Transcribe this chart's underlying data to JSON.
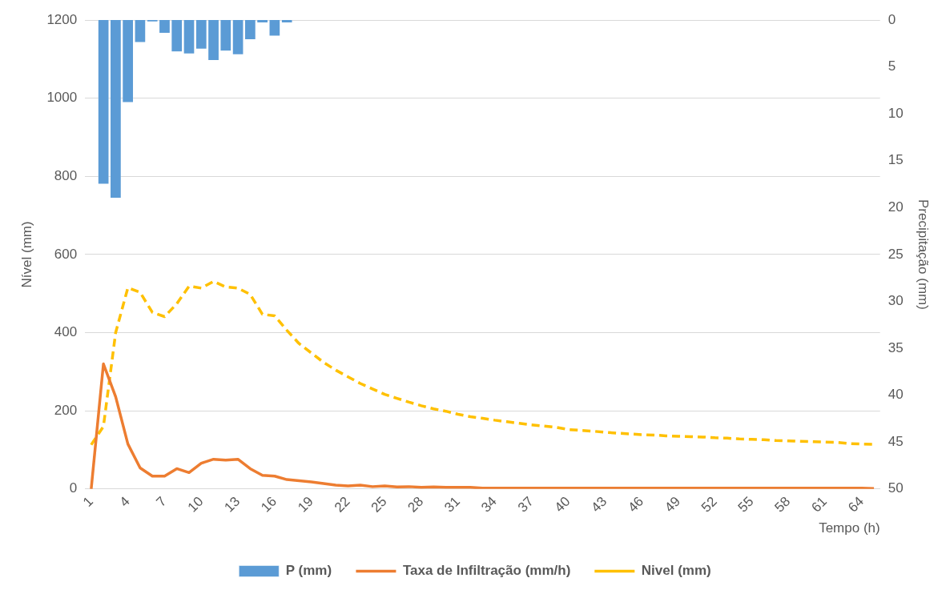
{
  "chart_data": {
    "type": "bar",
    "xlabel": "Tempo (h)",
    "ylabel": "Nível (mm)",
    "y2label": "Precipitação (mm)",
    "categories": [
      "1",
      null,
      null,
      "4",
      null,
      null,
      "7",
      null,
      null,
      "10",
      null,
      null,
      "13",
      null,
      null,
      "16",
      null,
      null,
      "19",
      null,
      null,
      "22",
      null,
      null,
      "25",
      null,
      null,
      "28",
      null,
      null,
      "31",
      null,
      null,
      "34",
      null,
      null,
      "37",
      null,
      null,
      "40",
      null,
      null,
      "43",
      null,
      null,
      "46",
      null,
      null,
      "49",
      null,
      null,
      "52",
      null,
      null,
      "55",
      null,
      null,
      "58",
      null,
      null,
      "61",
      null,
      null,
      "64",
      null
    ],
    "series": [
      {
        "name": "P (mm)",
        "type": "bar",
        "axis": "y2",
        "color": "#5b9bd5",
        "values": [
          0,
          17.5,
          19.0,
          8.8,
          2.4,
          0.2,
          1.4,
          3.4,
          3.6,
          3.1,
          4.3,
          3.3,
          3.7,
          2.1,
          0.3,
          1.7,
          0.3,
          0,
          0,
          0,
          0,
          0,
          0,
          0,
          0,
          0,
          0,
          0,
          0,
          0,
          0,
          0,
          0,
          0,
          0,
          0,
          0,
          0,
          0,
          0,
          0,
          0,
          0,
          0,
          0,
          0,
          0,
          0,
          0,
          0,
          0,
          0,
          0,
          0,
          0,
          0,
          0,
          0,
          0,
          0,
          0,
          0,
          0,
          0,
          0
        ]
      },
      {
        "name": "Taxa de Infiltração (mm/h)",
        "type": "line",
        "line_style": "solid",
        "color": "#ed7d31",
        "values": [
          0,
          320,
          236,
          115,
          54,
          33,
          33,
          52,
          42,
          66,
          76,
          74,
          76,
          52,
          35,
          33,
          24,
          21,
          18,
          14,
          10,
          8,
          10,
          6,
          8,
          5,
          6,
          4,
          5,
          4,
          4,
          4,
          2,
          2,
          2,
          2,
          2,
          2,
          2,
          2,
          2,
          2,
          2,
          2,
          2,
          2,
          2,
          2,
          2,
          2,
          2,
          2,
          2,
          2,
          2,
          2,
          2,
          2,
          2,
          2,
          2,
          2,
          2,
          2,
          1
        ]
      },
      {
        "name": "Nivel (mm)",
        "type": "line",
        "line_style": "dashed",
        "color": "#ffc000",
        "values": [
          113,
          160,
          400,
          515,
          503,
          452,
          441,
          474,
          519,
          514,
          531,
          517,
          514,
          498,
          447,
          443,
          406,
          372,
          348,
          324,
          304,
          287,
          270,
          256,
          242,
          232,
          222,
          213,
          205,
          199,
          191,
          185,
          181,
          176,
          172,
          168,
          164,
          161,
          158,
          152,
          150,
          148,
          145,
          143,
          141,
          139,
          138,
          136,
          135,
          134,
          133,
          131,
          130,
          128,
          127,
          126,
          124,
          123,
          122,
          121,
          120,
          119,
          116,
          115,
          114
        ]
      }
    ],
    "ylim": [
      0,
      1200
    ],
    "yticks": [
      0,
      200,
      400,
      600,
      800,
      1000,
      1200
    ],
    "y2lim": [
      50,
      0
    ],
    "y2ticks": [
      0,
      5,
      10,
      15,
      20,
      25,
      30,
      35,
      40,
      45,
      50
    ],
    "grid": "y",
    "legend": "bottom",
    "marker": "none"
  }
}
